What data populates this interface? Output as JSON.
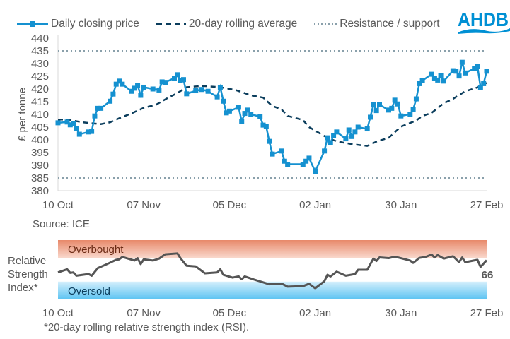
{
  "legend": {
    "price": "Daily closing price",
    "average": "20-day rolling average",
    "levels": "Resistance / support"
  },
  "logo": "AHDB",
  "source": "Source: ICE",
  "footnote": "*20-day rolling relative strength index (RSI).",
  "colors": {
    "price": "#1591d0",
    "average": "#0b3d5c",
    "levels": "#8aa0ab",
    "rsi": "#555555",
    "overbought": "#e8896a",
    "oversold": "#5bc3f2",
    "brand": "#0090d4"
  },
  "chart_data": [
    {
      "type": "line",
      "ylabel": "£ per tonne",
      "ylim": [
        380,
        440
      ],
      "yticks": [
        380,
        385,
        390,
        395,
        400,
        405,
        410,
        415,
        420,
        425,
        430,
        435,
        440
      ],
      "xticks": [
        "10 Oct",
        "07 Nov",
        "05 Dec",
        "02 Jan",
        "30 Jan",
        "27 Feb"
      ],
      "xlim": [
        "10 Oct",
        "27 Feb"
      ],
      "grid": false,
      "legend_position": "top",
      "reference_lines": [
        {
          "name": "Resistance / support",
          "y": 435
        },
        {
          "name": "Resistance / support",
          "y": 385
        }
      ],
      "series": [
        {
          "name": "Daily closing price",
          "style": "solid-square-markers",
          "points": [
            [
              "10 Oct",
              406.7
            ],
            [
              "13 Oct",
              407.0
            ],
            [
              "14 Oct",
              405.9
            ],
            [
              "15 Oct",
              406.4
            ],
            [
              "16 Oct",
              404.5
            ],
            [
              "17 Oct",
              402.2
            ],
            [
              "20 Oct",
              403.1
            ],
            [
              "21 Oct",
              403.3
            ],
            [
              "22 Oct",
              409.4
            ],
            [
              "23 Oct",
              412.4
            ],
            [
              "24 Oct",
              412.4
            ],
            [
              "27 Oct",
              415.2
            ],
            [
              "28 Oct",
              418.0
            ],
            [
              "29 Oct",
              421.9
            ],
            [
              "30 Oct",
              423.1
            ],
            [
              "31 Oct",
              421.9
            ],
            [
              "03 Nov",
              419.1
            ],
            [
              "04 Nov",
              420.3
            ],
            [
              "05 Nov",
              421.5
            ],
            [
              "06 Nov",
              417.5
            ],
            [
              "07 Nov",
              420.7
            ],
            [
              "10 Nov",
              420.0
            ],
            [
              "12 Nov",
              419.6
            ],
            [
              "13 Nov",
              422.8
            ],
            [
              "14 Nov",
              422.6
            ],
            [
              "17 Nov",
              424.3
            ],
            [
              "18 Nov",
              425.6
            ],
            [
              "19 Nov",
              423.3
            ],
            [
              "20 Nov",
              423.7
            ],
            [
              "21 Nov",
              418.1
            ],
            [
              "24 Nov",
              419.3
            ],
            [
              "26 Nov",
              419.8
            ],
            [
              "28 Nov",
              419.1
            ],
            [
              "01 Dec",
              416.9
            ],
            [
              "02 Dec",
              420.7
            ],
            [
              "03 Dec",
              415.2
            ],
            [
              "04 Dec",
              410.6
            ],
            [
              "05 Dec",
              411.3
            ],
            [
              "08 Dec",
              412.8
            ],
            [
              "09 Dec",
              407.3
            ],
            [
              "10 Dec",
              410.4
            ],
            [
              "11 Dec",
              411.7
            ],
            [
              "12 Dec",
              410.1
            ],
            [
              "15 Dec",
              409.1
            ],
            [
              "16 Dec",
              405.8
            ],
            [
              "17 Dec",
              405.2
            ],
            [
              "18 Dec",
              399.4
            ],
            [
              "19 Dec",
              394.4
            ],
            [
              "22 Dec",
              395.6
            ],
            [
              "23 Dec",
              391.6
            ],
            [
              "24 Dec",
              390.4
            ],
            [
              "29 Dec",
              390.4
            ],
            [
              "30 Dec",
              391.6
            ],
            [
              "31 Dec",
              392.8
            ],
            [
              "02 Jan",
              387.6
            ],
            [
              "05 Jan",
              395.6
            ],
            [
              "06 Jan",
              400.8
            ],
            [
              "07 Jan",
              398.8
            ],
            [
              "08 Jan",
              401.8
            ],
            [
              "09 Jan",
              403.1
            ],
            [
              "12 Jan",
              400.4
            ],
            [
              "13 Jan",
              403.9
            ],
            [
              "14 Jan",
              401.3
            ],
            [
              "15 Jan",
              403.1
            ],
            [
              "16 Jan",
              405.0
            ],
            [
              "19 Jan",
              404.3
            ],
            [
              "20 Jan",
              408.9
            ],
            [
              "21 Jan",
              413.8
            ],
            [
              "22 Jan",
              411.5
            ],
            [
              "23 Jan",
              413.8
            ],
            [
              "26 Jan",
              411.7
            ],
            [
              "27 Jan",
              412.4
            ],
            [
              "28 Jan",
              415.6
            ],
            [
              "29 Jan",
              414.1
            ],
            [
              "30 Jan",
              409.4
            ],
            [
              "02 Feb",
              410.1
            ],
            [
              "03 Feb",
              412.0
            ],
            [
              "04 Feb",
              416.1
            ],
            [
              "05 Feb",
              422.1
            ],
            [
              "06 Feb",
              423.3
            ],
            [
              "09 Feb",
              425.8
            ],
            [
              "10 Feb",
              424.2
            ],
            [
              "11 Feb",
              423.5
            ],
            [
              "12 Feb",
              425.2
            ],
            [
              "13 Feb",
              423.1
            ],
            [
              "16 Feb",
              427.2
            ],
            [
              "17 Feb",
              427.0
            ],
            [
              "18 Feb",
              425.1
            ],
            [
              "19 Feb",
              430.5
            ],
            [
              "20 Feb",
              426.3
            ],
            [
              "23 Feb",
              428.1
            ],
            [
              "24 Feb",
              428.9
            ],
            [
              "25 Feb",
              420.7
            ],
            [
              "26 Feb",
              422.1
            ],
            [
              "27 Feb",
              427.0
            ]
          ]
        },
        {
          "name": "20-day rolling average",
          "style": "dashed",
          "points": [
            [
              "10 Oct",
              408.0
            ],
            [
              "13 Oct",
              408.0
            ],
            [
              "18 Oct",
              406.9
            ],
            [
              "22 Oct",
              406.4
            ],
            [
              "24 Oct",
              406.2
            ],
            [
              "27 Oct",
              406.9
            ],
            [
              "30 Oct",
              408.5
            ],
            [
              "03 Nov",
              410.4
            ],
            [
              "07 Nov",
              412.6
            ],
            [
              "11 Nov",
              413.8
            ],
            [
              "15 Nov",
              416.6
            ],
            [
              "18 Nov",
              418.4
            ],
            [
              "21 Nov",
              420.7
            ],
            [
              "26 Nov",
              421.2
            ],
            [
              "02 Dec",
              420.7
            ],
            [
              "07 Dec",
              419.6
            ],
            [
              "12 Dec",
              417.5
            ],
            [
              "16 Dec",
              416.6
            ],
            [
              "19 Dec",
              413.3
            ],
            [
              "22 Dec",
              412.0
            ],
            [
              "24 Dec",
              409.4
            ],
            [
              "29 Dec",
              407.8
            ],
            [
              "31 Dec",
              405.0
            ],
            [
              "06 Jan",
              400.8
            ],
            [
              "09 Jan",
              399.4
            ],
            [
              "14 Jan",
              398.3
            ],
            [
              "19 Jan",
              397.6
            ],
            [
              "22 Jan",
              399.3
            ],
            [
              "26 Jan",
              400.8
            ],
            [
              "30 Jan",
              405.2
            ],
            [
              "04 Feb",
              407.6
            ],
            [
              "06 Feb",
              409.4
            ],
            [
              "09 Feb",
              410.6
            ],
            [
              "13 Feb",
              414.4
            ],
            [
              "16 Feb",
              416.1
            ],
            [
              "20 Feb",
              419.1
            ],
            [
              "24 Feb",
              420.6
            ],
            [
              "27 Feb",
              422.4
            ]
          ]
        }
      ]
    },
    {
      "type": "line",
      "ylabel": "Relative Strength Index*",
      "ylim": [
        0,
        100
      ],
      "xticks": [
        "10 Oct",
        "07 Nov",
        "05 Dec",
        "02 Jan",
        "30 Jan",
        "27 Feb"
      ],
      "bands": [
        {
          "label": "Overbought",
          "from": 70,
          "to": 100
        },
        {
          "label": "Oversold",
          "from": 0,
          "to": 30
        }
      ],
      "last_value_label": "66",
      "series": [
        {
          "points": [
            [
              "10 Oct",
              45.6
            ],
            [
              "13 Oct",
              50.8
            ],
            [
              "14 Oct",
              44.8
            ],
            [
              "15 Oct",
              45.6
            ],
            [
              "16 Oct",
              40.0
            ],
            [
              "20 Oct",
              42.8
            ],
            [
              "21 Oct",
              40.0
            ],
            [
              "23 Oct",
              52.8
            ],
            [
              "26 Oct",
              59.6
            ],
            [
              "29 Oct",
              66.8
            ],
            [
              "30 Oct",
              67.6
            ],
            [
              "31 Oct",
              71.6
            ],
            [
              "04 Nov",
              65.6
            ],
            [
              "05 Nov",
              69.6
            ],
            [
              "06 Nov",
              59.6
            ],
            [
              "07 Nov",
              67.6
            ],
            [
              "10 Nov",
              65.6
            ],
            [
              "12 Nov",
              68.8
            ],
            [
              "14 Nov",
              76.0
            ],
            [
              "18 Nov",
              77.6
            ],
            [
              "19 Nov",
              69.6
            ],
            [
              "21 Nov",
              56.8
            ],
            [
              "24 Nov",
              55.6
            ],
            [
              "27 Nov",
              44.0
            ],
            [
              "01 Dec",
              45.6
            ],
            [
              "02 Dec",
              50.8
            ],
            [
              "03 Dec",
              41.6
            ],
            [
              "06 Dec",
              36.8
            ],
            [
              "08 Dec",
              38.8
            ],
            [
              "09 Dec",
              34.0
            ],
            [
              "10 Dec",
              38.8
            ],
            [
              "13 Dec",
              33.6
            ],
            [
              "16 Dec",
              28.8
            ],
            [
              "18 Dec",
              25.5
            ],
            [
              "22 Dec",
              26.8
            ],
            [
              "24 Dec",
              21.6
            ],
            [
              "29 Dec",
              22.4
            ],
            [
              "31 Dec",
              26.4
            ],
            [
              "02 Jan",
              18.8
            ],
            [
              "05 Jan",
              30.8
            ],
            [
              "06 Jan",
              41.6
            ],
            [
              "07 Jan",
              38.8
            ],
            [
              "09 Jan",
              46.8
            ],
            [
              "12 Jan",
              40.0
            ],
            [
              "15 Jan",
              42.8
            ],
            [
              "16 Jan",
              50.0
            ],
            [
              "19 Jan",
              50.0
            ],
            [
              "21 Jan",
              68.8
            ],
            [
              "22 Jan",
              64.8
            ],
            [
              "23 Jan",
              70.8
            ],
            [
              "26 Jan",
              69.6
            ],
            [
              "28 Jan",
              72.0
            ],
            [
              "30 Jan",
              69.6
            ],
            [
              "02 Feb",
              65.6
            ],
            [
              "03 Feb",
              61.6
            ],
            [
              "05 Feb",
              70.0
            ],
            [
              "07 Feb",
              71.6
            ],
            [
              "09 Feb",
              75.6
            ],
            [
              "10 Feb",
              70.8
            ],
            [
              "11 Feb",
              74.8
            ],
            [
              "13 Feb",
              68.8
            ],
            [
              "16 Feb",
              72.8
            ],
            [
              "18 Feb",
              62.8
            ],
            [
              "19 Feb",
              70.8
            ],
            [
              "20 Feb",
              62.8
            ],
            [
              "24 Feb",
              66.8
            ],
            [
              "25 Feb",
              54.8
            ],
            [
              "27 Feb",
              66
            ]
          ]
        }
      ]
    }
  ]
}
